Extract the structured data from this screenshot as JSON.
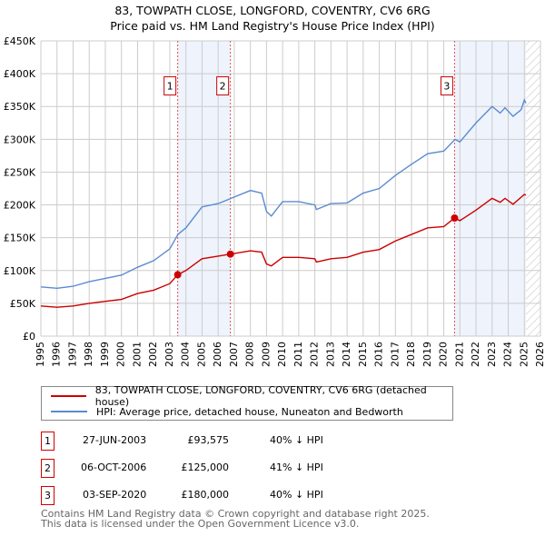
{
  "title": "83, TOWPATH CLOSE, LONGFORD, COVENTRY, CV6 6RG",
  "subtitle": "Price paid vs. HM Land Registry's House Price Index (HPI)",
  "colors": {
    "property": "#cc0000",
    "hpi": "#5b8bd0",
    "shade": "#eef3fc"
  },
  "chart_data": {
    "type": "line",
    "xlim": [
      1995,
      2026
    ],
    "ylim": [
      0,
      450000
    ],
    "x_ticks": [
      1995,
      1996,
      1997,
      1998,
      1999,
      2000,
      2001,
      2002,
      2003,
      2004,
      2005,
      2006,
      2007,
      2008,
      2009,
      2010,
      2011,
      2012,
      2013,
      2014,
      2015,
      2016,
      2017,
      2018,
      2019,
      2020,
      2021,
      2022,
      2023,
      2024,
      2025,
      2026
    ],
    "y_ticks": [
      {
        "v": 0,
        "label": "£0"
      },
      {
        "v": 50000,
        "label": "£50K"
      },
      {
        "v": 100000,
        "label": "£100K"
      },
      {
        "v": 150000,
        "label": "£150K"
      },
      {
        "v": 200000,
        "label": "£200K"
      },
      {
        "v": 250000,
        "label": "£250K"
      },
      {
        "v": 300000,
        "label": "£300K"
      },
      {
        "v": 350000,
        "label": "£350K"
      },
      {
        "v": 400000,
        "label": "£400K"
      },
      {
        "v": 450000,
        "label": "£450K"
      }
    ],
    "grid": true,
    "shaded_ranges": [
      [
        2003.49,
        2006.76
      ],
      [
        2020.67,
        2025.1
      ]
    ],
    "forecast_hatch_from": 2025.1,
    "series": [
      {
        "name": "83, TOWPATH CLOSE, LONGFORD, COVENTRY, CV6 6RG (detached house)",
        "color": "#cc0000",
        "points": [
          [
            1995,
            46000
          ],
          [
            1996,
            44000
          ],
          [
            1997,
            46000
          ],
          [
            1998,
            50000
          ],
          [
            1999,
            53000
          ],
          [
            2000,
            56000
          ],
          [
            2001,
            65000
          ],
          [
            2002,
            70000
          ],
          [
            2003,
            80000
          ],
          [
            2003.49,
            93575
          ],
          [
            2004,
            100000
          ],
          [
            2005,
            118000
          ],
          [
            2006,
            122000
          ],
          [
            2006.76,
            125000
          ],
          [
            2008,
            130000
          ],
          [
            2008.7,
            128000
          ],
          [
            2009,
            110000
          ],
          [
            2009.3,
            107000
          ],
          [
            2010,
            120000
          ],
          [
            2011,
            120000
          ],
          [
            2012,
            118000
          ],
          [
            2012.1,
            113000
          ],
          [
            2013,
            118000
          ],
          [
            2014,
            120000
          ],
          [
            2015,
            128000
          ],
          [
            2016,
            132000
          ],
          [
            2017,
            145000
          ],
          [
            2018,
            155000
          ],
          [
            2019,
            165000
          ],
          [
            2020,
            167000
          ],
          [
            2020.67,
            180000
          ],
          [
            2021,
            176000
          ],
          [
            2022,
            192000
          ],
          [
            2023,
            210000
          ],
          [
            2023.5,
            204000
          ],
          [
            2023.8,
            210000
          ],
          [
            2024.3,
            201000
          ],
          [
            2025,
            216000
          ],
          [
            2025.1,
            215000
          ]
        ]
      },
      {
        "name": "HPI: Average price, detached house, Nuneaton and Bedworth",
        "color": "#5b8bd0",
        "points": [
          [
            1995,
            75000
          ],
          [
            1996,
            73000
          ],
          [
            1997,
            76000
          ],
          [
            1998,
            83000
          ],
          [
            1999,
            88000
          ],
          [
            2000,
            93000
          ],
          [
            2001,
            105000
          ],
          [
            2002,
            115000
          ],
          [
            2003,
            133000
          ],
          [
            2003.5,
            155000
          ],
          [
            2004,
            165000
          ],
          [
            2005,
            197000
          ],
          [
            2006,
            202000
          ],
          [
            2007,
            212000
          ],
          [
            2008,
            222000
          ],
          [
            2008.7,
            218000
          ],
          [
            2009,
            190000
          ],
          [
            2009.3,
            183000
          ],
          [
            2010,
            205000
          ],
          [
            2011,
            205000
          ],
          [
            2012,
            200000
          ],
          [
            2012.1,
            193000
          ],
          [
            2013,
            202000
          ],
          [
            2014,
            203000
          ],
          [
            2015,
            218000
          ],
          [
            2016,
            225000
          ],
          [
            2017,
            245000
          ],
          [
            2018,
            262000
          ],
          [
            2019,
            278000
          ],
          [
            2020,
            282000
          ],
          [
            2020.7,
            300000
          ],
          [
            2021,
            296000
          ],
          [
            2022,
            325000
          ],
          [
            2023,
            350000
          ],
          [
            2023.5,
            340000
          ],
          [
            2023.8,
            348000
          ],
          [
            2024.3,
            335000
          ],
          [
            2024.8,
            345000
          ],
          [
            2025,
            360000
          ],
          [
            2025.1,
            355000
          ]
        ]
      }
    ],
    "sales": [
      {
        "id": "1",
        "x": 2003.49,
        "y": 93575
      },
      {
        "id": "2",
        "x": 2006.76,
        "y": 125000
      },
      {
        "id": "3",
        "x": 2020.67,
        "y": 180000
      }
    ],
    "marker_label_y": 380000
  },
  "legend": [
    {
      "label": "83, TOWPATH CLOSE, LONGFORD, COVENTRY, CV6 6RG (detached house)"
    },
    {
      "label": "HPI: Average price, detached house, Nuneaton and Bedworth"
    }
  ],
  "transactions": [
    {
      "id": "1",
      "date": "27-JUN-2003",
      "price": "£93,575",
      "hpi": "40% ↓ HPI"
    },
    {
      "id": "2",
      "date": "06-OCT-2006",
      "price": "£125,000",
      "hpi": "41% ↓ HPI"
    },
    {
      "id": "3",
      "date": "03-SEP-2020",
      "price": "£180,000",
      "hpi": "40% ↓ HPI"
    }
  ],
  "footer": {
    "line1": "Contains HM Land Registry data © Crown copyright and database right 2025.",
    "line2": "This data is licensed under the Open Government Licence v3.0."
  }
}
